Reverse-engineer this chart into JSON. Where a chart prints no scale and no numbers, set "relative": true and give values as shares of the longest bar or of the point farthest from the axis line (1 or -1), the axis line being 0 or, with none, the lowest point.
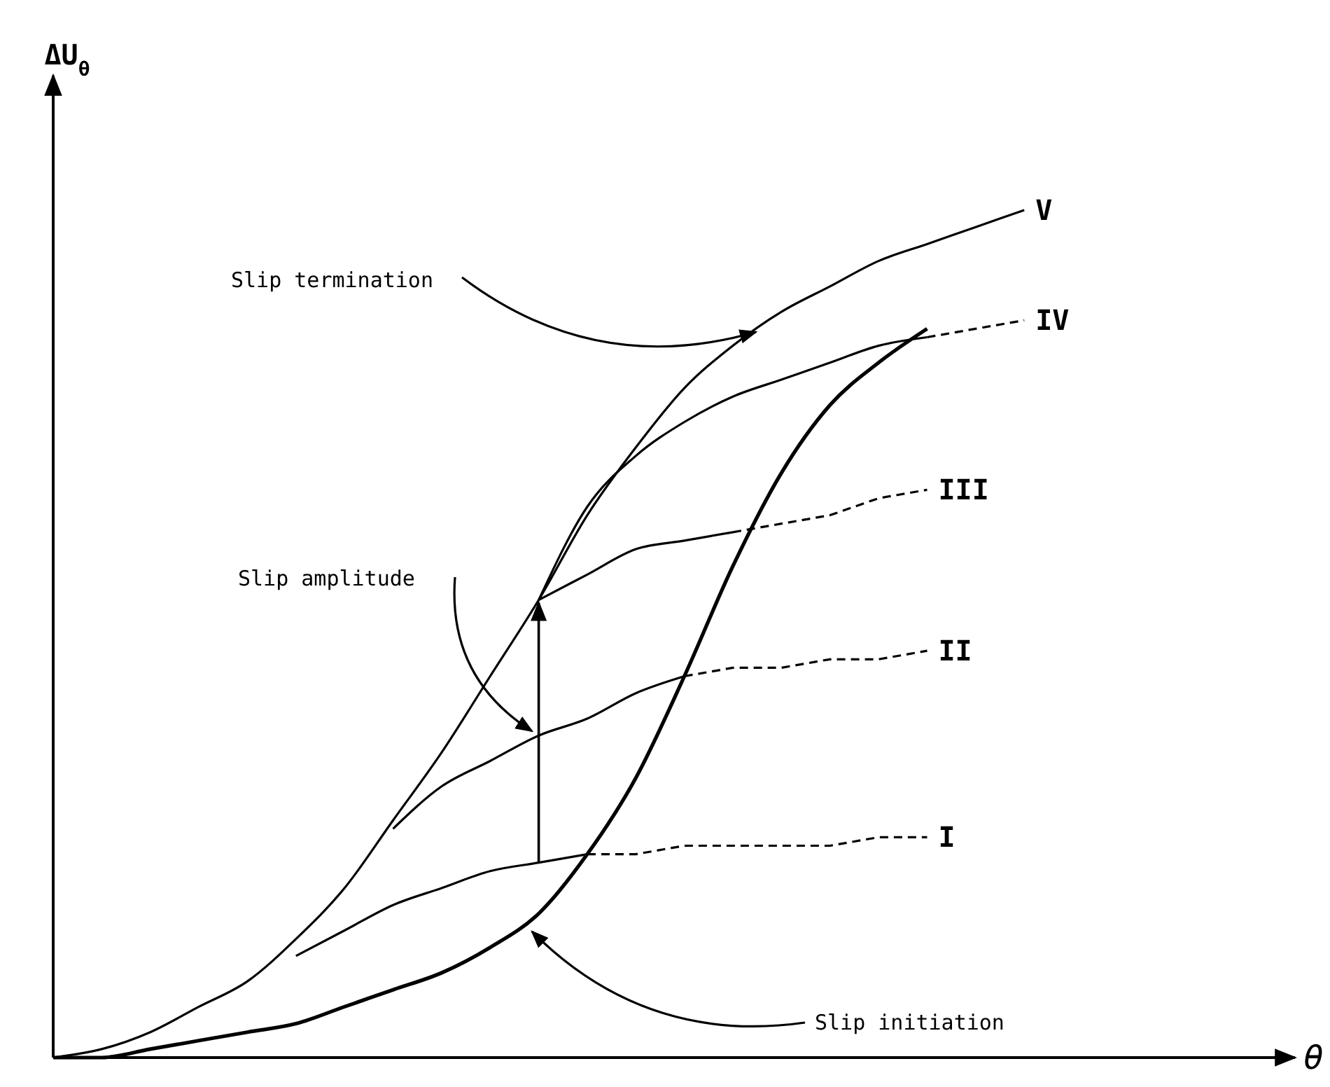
{
  "chart_data": {
    "type": "line",
    "relative": true,
    "tick_labels": false,
    "marker": "none",
    "xlabel": "θ",
    "ylabel": "ΔU$_{θ}$",
    "categories": [
      null,
      null,
      null,
      null,
      null,
      null,
      null,
      null,
      null,
      null,
      null,
      null,
      null,
      null,
      null,
      null,
      null,
      null,
      null,
      null,
      null,
      null,
      null,
      null,
      null,
      null
    ],
    "series": [
      {
        "name": "V",
        "color": "#000000",
        "line_style": "solid",
        "values": [
          0,
          0.01,
          0.03,
          0.06,
          0.09,
          0.14,
          0.2,
          0.28,
          0.36,
          0.45,
          0.54,
          0.64,
          0.72,
          0.79,
          0.84,
          0.88,
          0.91,
          0.94,
          0.96,
          0.98,
          1.0,
          null,
          null,
          null,
          null,
          null
        ]
      },
      {
        "color": "#000000",
        "line_style": "solid",
        "values": [
          0,
          0.0,
          0.01,
          0.02,
          0.03,
          0.04,
          0.06,
          0.08,
          0.1,
          0.13,
          0.17,
          0.24,
          0.33,
          0.45,
          0.58,
          0.69,
          0.77,
          0.82,
          0.86,
          null,
          null,
          null,
          null,
          null,
          null,
          null
        ]
      },
      {
        "color": "#000000",
        "line_style": "solid",
        "values": [
          null,
          null,
          null,
          null,
          null,
          0.12,
          0.15,
          0.18,
          0.2,
          0.22,
          0.23,
          0.24,
          null,
          null,
          null,
          null,
          null,
          null,
          null,
          null,
          null,
          null,
          null,
          null,
          null,
          null
        ]
      },
      {
        "color": "#000000",
        "line_style": "solid",
        "values": [
          null,
          null,
          null,
          null,
          null,
          null,
          null,
          0.27,
          0.32,
          0.35,
          0.38,
          0.4,
          0.43,
          0.45,
          null,
          null,
          null,
          null,
          null,
          null,
          null,
          null,
          null,
          null,
          null,
          null
        ]
      },
      {
        "color": "#000000",
        "line_style": "solid",
        "values": [
          null,
          null,
          null,
          null,
          null,
          null,
          null,
          null,
          null,
          null,
          0.54,
          0.57,
          0.6,
          0.61,
          0.62,
          null,
          null,
          null,
          null,
          null,
          null,
          null,
          null,
          null,
          null,
          null
        ]
      },
      {
        "color": "#000000",
        "line_style": "solid",
        "values": [
          null,
          null,
          null,
          null,
          null,
          null,
          null,
          null,
          null,
          null,
          0.54,
          0.65,
          0.71,
          0.75,
          0.78,
          0.8,
          0.82,
          0.84,
          0.85,
          null,
          null,
          null,
          null,
          null,
          null,
          null
        ]
      },
      {
        "name": "I",
        "color": "#000000",
        "line_style": "dashed",
        "values": [
          null,
          null,
          null,
          null,
          null,
          null,
          null,
          null,
          null,
          null,
          null,
          0.24,
          0.24,
          0.25,
          0.25,
          0.25,
          0.25,
          0.26,
          0.26,
          null,
          null,
          null,
          null,
          null,
          null,
          null
        ]
      },
      {
        "name": "II",
        "color": "#000000",
        "line_style": "dashed",
        "values": [
          null,
          null,
          null,
          null,
          null,
          null,
          null,
          null,
          null,
          null,
          null,
          null,
          null,
          0.45,
          0.46,
          0.46,
          0.47,
          0.47,
          0.48,
          null,
          null,
          null,
          null,
          null,
          null,
          null
        ]
      },
      {
        "name": "III",
        "color": "#000000",
        "line_style": "dashed",
        "values": [
          null,
          null,
          null,
          null,
          null,
          null,
          null,
          null,
          null,
          null,
          null,
          null,
          null,
          null,
          0.62,
          0.63,
          0.64,
          0.66,
          0.67,
          null,
          null,
          null,
          null,
          null,
          null,
          null
        ]
      },
      {
        "name": "IV",
        "color": "#000000",
        "line_style": "dashed",
        "values": [
          null,
          null,
          null,
          null,
          null,
          null,
          null,
          null,
          null,
          null,
          null,
          null,
          null,
          null,
          null,
          null,
          null,
          null,
          0.85,
          0.86,
          0.87,
          null,
          null,
          null,
          null,
          null
        ]
      }
    ],
    "annotations": [
      "Slip termination",
      "Slip amplitude",
      "Slip initiation"
    ]
  }
}
